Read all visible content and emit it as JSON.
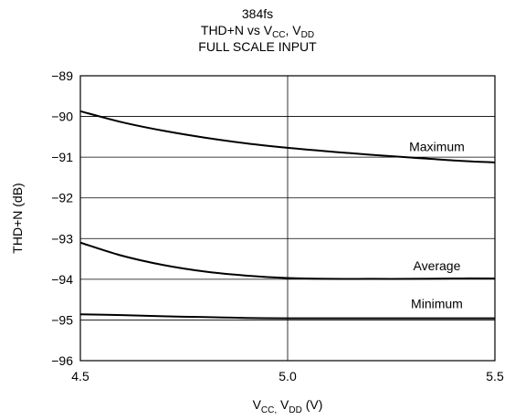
{
  "chart_data": {
    "type": "line",
    "title_lines": [
      "384fs",
      "THD+N vs V",
      "FULL SCALE INPUT"
    ],
    "title_parts": {
      "line2_a": "THD+N vs V",
      "line2_sub1": "CC",
      "line2_b": ", V",
      "line2_sub2": "DD"
    },
    "xlabel_parts": {
      "a": "V",
      "sub1": "CC,",
      "b": " V",
      "sub2": "DD",
      "c": " (V)"
    },
    "ylabel": "THD+N (dB)",
    "xlim": [
      4.5,
      5.5
    ],
    "ylim": [
      -96,
      -89
    ],
    "x_ticks": [
      4.5,
      5.0,
      5.5
    ],
    "x_tick_labels": [
      "4.5",
      "5.0",
      "5.5"
    ],
    "y_ticks": [
      -89,
      -90,
      -91,
      -92,
      -93,
      -94,
      -95,
      -96
    ],
    "y_tick_labels": [
      "−89",
      "−90",
      "−91",
      "−92",
      "−93",
      "−94",
      "−95",
      "−96"
    ],
    "grid": true,
    "series": [
      {
        "name": "Maximum",
        "x": [
          4.5,
          4.6,
          4.7,
          4.8,
          4.9,
          5.0,
          5.1,
          5.2,
          5.3,
          5.4,
          5.5
        ],
        "y": [
          -89.87,
          -90.14,
          -90.35,
          -90.52,
          -90.66,
          -90.77,
          -90.86,
          -90.94,
          -91.01,
          -91.08,
          -91.13
        ]
      },
      {
        "name": "Average",
        "x": [
          4.5,
          4.6,
          4.7,
          4.8,
          4.9,
          5.0,
          5.1,
          5.2,
          5.3,
          5.4,
          5.5
        ],
        "y": [
          -93.1,
          -93.42,
          -93.65,
          -93.81,
          -93.91,
          -93.97,
          -93.99,
          -93.99,
          -93.99,
          -93.98,
          -93.98
        ]
      },
      {
        "name": "Minimum",
        "x": [
          4.5,
          4.6,
          4.7,
          4.8,
          4.9,
          5.0,
          5.1,
          5.2,
          5.3,
          5.4,
          5.5
        ],
        "y": [
          -94.86,
          -94.88,
          -94.91,
          -94.93,
          -94.95,
          -94.96,
          -94.96,
          -94.96,
          -94.96,
          -94.96,
          -94.96
        ]
      }
    ]
  },
  "title": {
    "line1": "384fs",
    "line3": "FULL SCALE INPUT"
  },
  "colors": {
    "line": "#000000",
    "grid": "#000000",
    "background": "#ffffff"
  }
}
